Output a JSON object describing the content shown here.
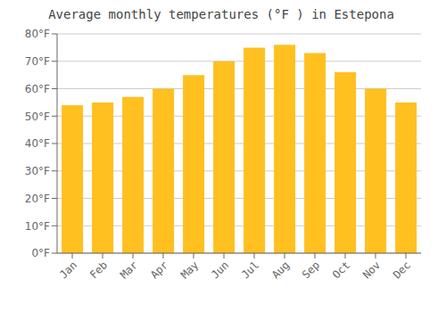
{
  "chart_data": {
    "type": "bar",
    "title": "Average monthly temperatures (°F ) in Estepona",
    "categories": [
      "Jan",
      "Feb",
      "Mar",
      "Apr",
      "May",
      "Jun",
      "Jul",
      "Aug",
      "Sep",
      "Oct",
      "Nov",
      "Dec"
    ],
    "values": [
      54,
      55,
      57,
      60,
      65,
      70,
      75,
      76,
      73,
      66,
      60,
      55
    ],
    "color": "#FFC020",
    "ylim": [
      0,
      80
    ],
    "yticks": [
      {
        "value": 0,
        "label": "0°F"
      },
      {
        "value": 10,
        "label": "10°F"
      },
      {
        "value": 20,
        "label": "20°F"
      },
      {
        "value": 30,
        "label": "30°F"
      },
      {
        "value": 40,
        "label": "40°F"
      },
      {
        "value": 50,
        "label": "50°F"
      },
      {
        "value": 60,
        "label": "60°F"
      },
      {
        "value": 70,
        "label": "70°F"
      },
      {
        "value": 80,
        "label": "80°F"
      }
    ],
    "grid": true
  }
}
